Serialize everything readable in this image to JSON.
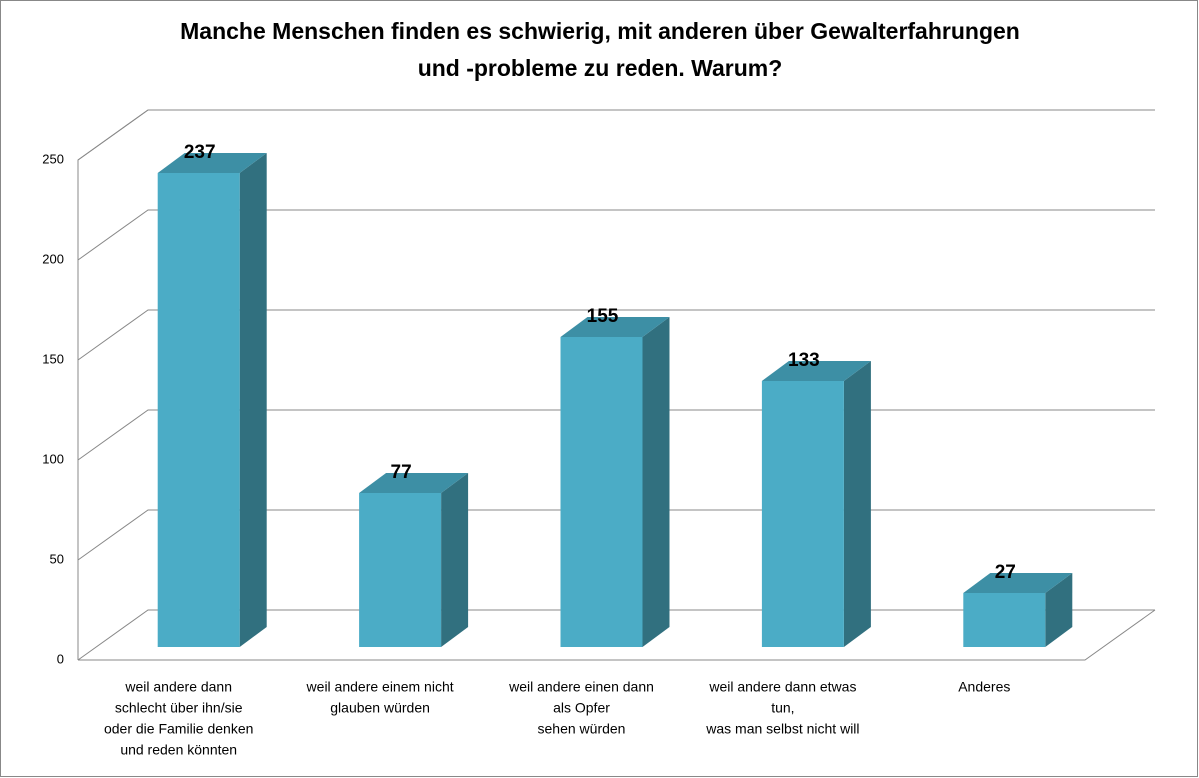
{
  "chart_data": {
    "type": "bar3d",
    "title": [
      "Manche Menschen finden es schwierig, mit anderen über Gewalterfahrungen",
      "und -probleme zu reden. Warum?"
    ],
    "categories": [
      [
        "weil andere dann",
        "schlecht über ihn/sie",
        "oder die Familie denken",
        "und reden könnten"
      ],
      [
        "weil andere einem nicht",
        "glauben würden"
      ],
      [
        "weil andere einen dann",
        "als Opfer",
        "sehen würden"
      ],
      [
        "weil andere dann etwas",
        "tun,",
        "was man selbst nicht will"
      ],
      [
        "Anderes"
      ]
    ],
    "values": [
      237,
      77,
      155,
      133,
      27
    ],
    "color": "#4bacc6",
    "ylim": [
      0,
      250
    ],
    "yticks": [
      0,
      50,
      100,
      150,
      200,
      250
    ],
    "grid": true
  }
}
